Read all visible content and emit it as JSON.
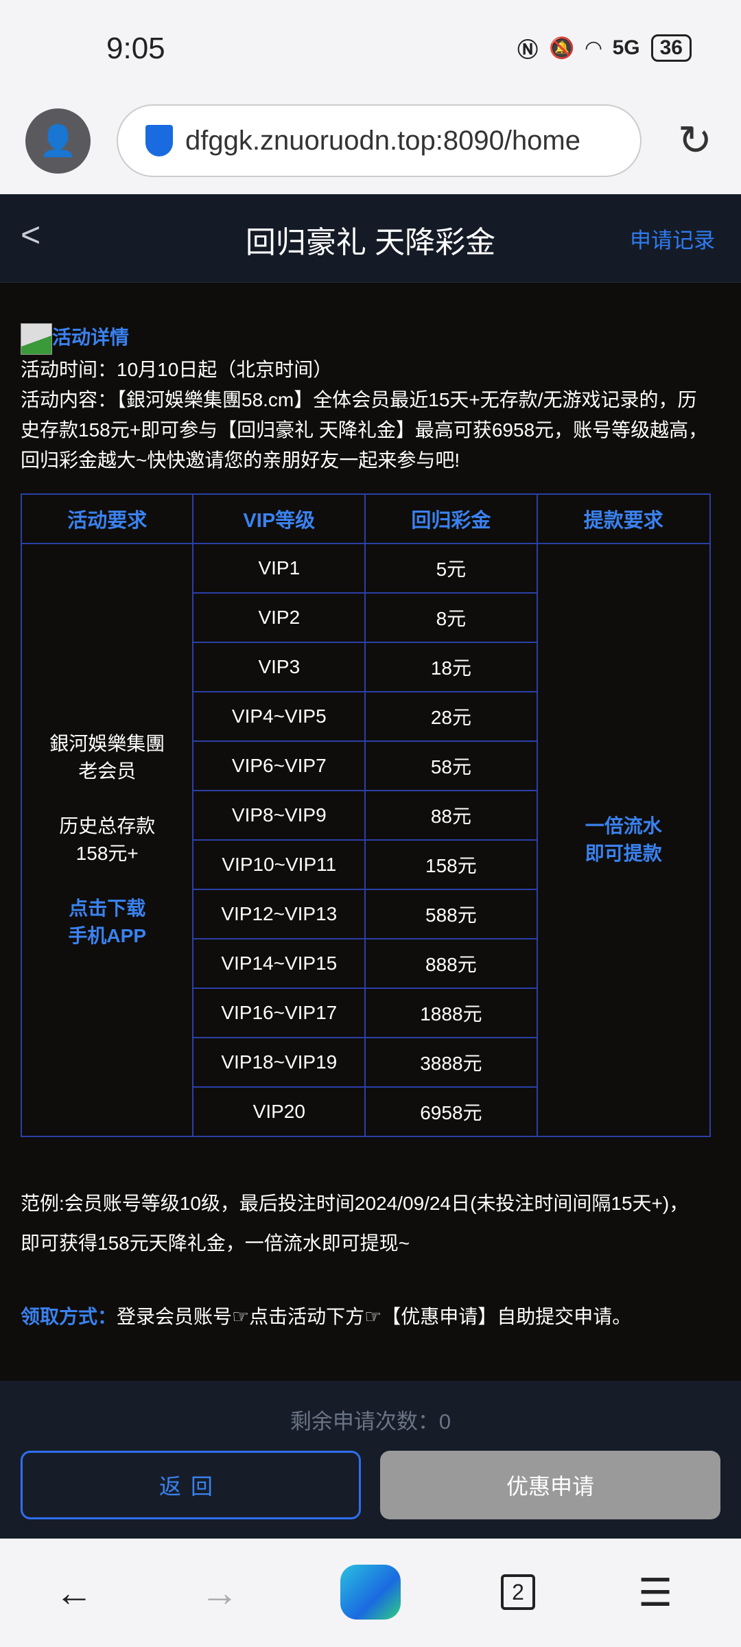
{
  "status": {
    "time": "9:05",
    "network": "5G",
    "battery": "36"
  },
  "browser": {
    "url": "dfggk.znuoruodn.top:8090/home",
    "tab_count": "2"
  },
  "header": {
    "title": "回归豪礼 天降彩金",
    "records": "申请记录"
  },
  "intro": {
    "detail_link": "活动详情",
    "time_line": "活动时间：10月10日起（北京时间）",
    "content_line": "活动内容：【銀河娛樂集團58.cm】全体会员最近15天+无存款/无游戏记录的，历史存款158元+即可参与【回归豪礼 天降礼金】最高可获6958元，账号等级越高，回归彩金越大~快快邀请您的亲朋好友一起来参与吧!"
  },
  "table": {
    "headers": [
      "活动要求",
      "VIP等级",
      "回归彩金",
      "提款要求"
    ],
    "requirement": {
      "line1": "銀河娛樂集團",
      "line2": "老会员",
      "line3": "历史总存款",
      "line4": "158元+",
      "link1": "点击下载",
      "link2": "手机APP"
    },
    "withdraw": {
      "line1": "一倍流水",
      "line2": "即可提款"
    },
    "rows": [
      {
        "level": "VIP1",
        "bonus": "5元"
      },
      {
        "level": "VIP2",
        "bonus": "8元"
      },
      {
        "level": "VIP3",
        "bonus": "18元"
      },
      {
        "level": "VIP4~VIP5",
        "bonus": "28元"
      },
      {
        "level": "VIP6~VIP7",
        "bonus": "58元"
      },
      {
        "level": "VIP8~VIP9",
        "bonus": "88元"
      },
      {
        "level": "VIP10~VIP11",
        "bonus": "158元"
      },
      {
        "level": "VIP12~VIP13",
        "bonus": "588元"
      },
      {
        "level": "VIP14~VIP15",
        "bonus": "888元"
      },
      {
        "level": "VIP16~VIP17",
        "bonus": "1888元"
      },
      {
        "level": "VIP18~VIP19",
        "bonus": "3888元"
      },
      {
        "level": "VIP20",
        "bonus": "6958元"
      }
    ]
  },
  "example": {
    "line1": "范例:会员账号等级10级，最后投注时间2024/09/24日(未投注时间间隔15天+)，",
    "line2": "即可获得158元天降礼金，一倍流水即可提现~"
  },
  "claim": {
    "label": "领取方式：",
    "text": "登录会员账号☞点击活动下方☞【优惠申请】自助提交申请。"
  },
  "footer": {
    "remaining": "剩余申请次数：0",
    "back": "返回",
    "apply": "优惠申请"
  },
  "colors": {
    "accent": "#3a82f0",
    "background": "#0e0d0b",
    "border": "#2b3fa8"
  }
}
